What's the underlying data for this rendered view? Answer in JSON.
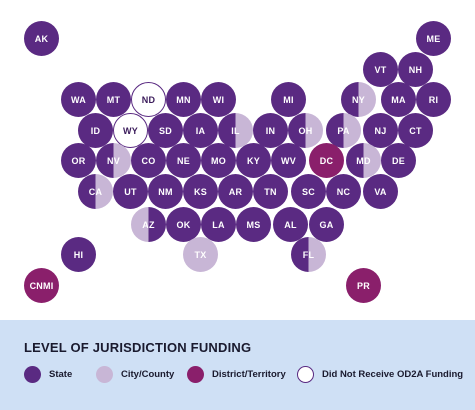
{
  "map": {
    "hexes": [
      {
        "abbr": "AK",
        "kind": "state"
      },
      {
        "abbr": "ME",
        "kind": "state"
      },
      {
        "abbr": "VT",
        "kind": "state"
      },
      {
        "abbr": "NH",
        "kind": "state"
      },
      {
        "abbr": "WA",
        "kind": "state"
      },
      {
        "abbr": "MT",
        "kind": "state"
      },
      {
        "abbr": "ND",
        "kind": "none"
      },
      {
        "abbr": "MN",
        "kind": "state"
      },
      {
        "abbr": "WI",
        "kind": "state"
      },
      {
        "abbr": "MI",
        "kind": "state"
      },
      {
        "abbr": "NY",
        "kind": "halfR"
      },
      {
        "abbr": "MA",
        "kind": "state"
      },
      {
        "abbr": "RI",
        "kind": "state"
      },
      {
        "abbr": "ID",
        "kind": "state"
      },
      {
        "abbr": "WY",
        "kind": "none"
      },
      {
        "abbr": "SD",
        "kind": "state"
      },
      {
        "abbr": "IA",
        "kind": "state"
      },
      {
        "abbr": "IL",
        "kind": "halfR"
      },
      {
        "abbr": "IN",
        "kind": "state"
      },
      {
        "abbr": "OH",
        "kind": "halfR"
      },
      {
        "abbr": "PA",
        "kind": "halfR"
      },
      {
        "abbr": "NJ",
        "kind": "state"
      },
      {
        "abbr": "CT",
        "kind": "state"
      },
      {
        "abbr": "OR",
        "kind": "state"
      },
      {
        "abbr": "NV",
        "kind": "halfR"
      },
      {
        "abbr": "CO",
        "kind": "state"
      },
      {
        "abbr": "NE",
        "kind": "state"
      },
      {
        "abbr": "MO",
        "kind": "state"
      },
      {
        "abbr": "KY",
        "kind": "state"
      },
      {
        "abbr": "WV",
        "kind": "state"
      },
      {
        "abbr": "DC",
        "kind": "district"
      },
      {
        "abbr": "MD",
        "kind": "halfR"
      },
      {
        "abbr": "DE",
        "kind": "state"
      },
      {
        "abbr": "CA",
        "kind": "halfR"
      },
      {
        "abbr": "UT",
        "kind": "state"
      },
      {
        "abbr": "NM",
        "kind": "state"
      },
      {
        "abbr": "KS",
        "kind": "state"
      },
      {
        "abbr": "AR",
        "kind": "state"
      },
      {
        "abbr": "TN",
        "kind": "state"
      },
      {
        "abbr": "SC",
        "kind": "state"
      },
      {
        "abbr": "NC",
        "kind": "state"
      },
      {
        "abbr": "VA",
        "kind": "state"
      },
      {
        "abbr": "AZ",
        "kind": "halfL"
      },
      {
        "abbr": "OK",
        "kind": "state"
      },
      {
        "abbr": "LA",
        "kind": "state"
      },
      {
        "abbr": "MS",
        "kind": "state"
      },
      {
        "abbr": "AL",
        "kind": "state"
      },
      {
        "abbr": "GA",
        "kind": "state"
      },
      {
        "abbr": "HI",
        "kind": "state"
      },
      {
        "abbr": "TX",
        "kind": "county"
      },
      {
        "abbr": "FL",
        "kind": "halfR"
      },
      {
        "abbr": "CNMI",
        "kind": "district"
      },
      {
        "abbr": "PR",
        "kind": "district"
      }
    ]
  },
  "legend": {
    "title": "LEVEL OF JURISDICTION FUNDING",
    "items": [
      {
        "label": "State",
        "color": "#5a2a82"
      },
      {
        "label": "City/County",
        "color": "#c8b6d6"
      },
      {
        "label": "District/Territory",
        "color": "#8a1f6b"
      },
      {
        "label": "Did Not Receive OD2A Funding",
        "color": "#ffffff"
      }
    ]
  },
  "colors": {
    "state": "#5a2a82",
    "city_county": "#c8b6d6",
    "district_territory": "#8a1f6b",
    "not_funded_fill": "#ffffff",
    "legend_background": "#cfe0f5"
  }
}
